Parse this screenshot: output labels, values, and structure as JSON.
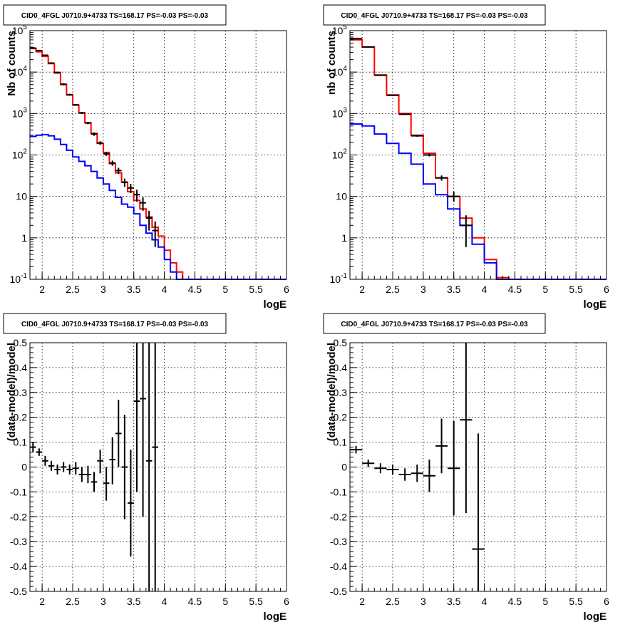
{
  "chart_data": [
    {
      "type": "line",
      "title": "CID0_4FGL J0710.9+4733 TS=168.17 PS=-0.03 PS=-0.03",
      "xlabel": "logE",
      "ylabel": "Nb of counts",
      "xlim": [
        1.8,
        6.0
      ],
      "ylim": [
        0.1,
        100000
      ],
      "yscale": "log",
      "grid": true,
      "xticks": [
        "2",
        "2.5",
        "3",
        "3.5",
        "4",
        "4.5",
        "5",
        "5.5",
        "6"
      ],
      "yticks": [
        "10^{-1}",
        "1",
        "10",
        "10^{2}",
        "10^{3}",
        "10^{4}",
        "10^{5}"
      ],
      "edges": [
        1.8,
        1.9,
        2.0,
        2.1,
        2.2,
        2.3,
        2.4,
        2.5,
        2.6,
        2.7,
        2.8,
        2.9,
        3.0,
        3.1,
        3.2,
        3.3,
        3.4,
        3.5,
        3.6,
        3.7,
        3.8,
        3.9,
        4.0,
        4.1,
        4.2,
        4.3,
        4.4,
        4.5,
        4.6,
        4.7,
        4.8,
        4.9,
        5.0,
        5.1,
        5.2,
        5.3,
        5.4,
        5.5,
        5.6,
        5.7,
        5.8,
        5.9,
        6.0
      ],
      "series": [
        {
          "role": "model-total",
          "color": "#ff0000",
          "values": [
            37000,
            31000,
            24000,
            16000,
            9500,
            5000,
            2800,
            1600,
            1050,
            600,
            330,
            190,
            115,
            62,
            37,
            22,
            13,
            8,
            5,
            3.2,
            1.8,
            1.1,
            0.5,
            0.25,
            0.15,
            0.1,
            0.1,
            0.1,
            0.1,
            0.1,
            0.1,
            0.1,
            0.1,
            0.1,
            0.1,
            0.1,
            0.1,
            0.1,
            0.1,
            0.1,
            0.1,
            0.1
          ]
        },
        {
          "role": "model-component",
          "color": "#0000ff",
          "values": [
            280,
            300,
            310,
            290,
            240,
            180,
            130,
            90,
            70,
            55,
            40,
            28,
            20,
            14,
            9.5,
            6.5,
            5.5,
            3.8,
            2,
            1.3,
            0.9,
            0.6,
            0.3,
            0.15,
            0.1,
            0.1,
            0.1,
            0.1,
            0.1,
            0.1,
            0.1,
            0.1,
            0.1,
            0.1,
            0.1,
            0.1,
            0.1,
            0.1,
            0.1,
            0.1,
            0.1,
            0.1
          ]
        }
      ],
      "points": [
        {
          "x": 1.85,
          "xerr": 0.05,
          "y": 38000,
          "ylo": 36000,
          "yhi": 40000
        },
        {
          "x": 1.95,
          "xerr": 0.05,
          "y": 33000,
          "ylo": 31500,
          "yhi": 34500
        },
        {
          "x": 2.05,
          "xerr": 0.05,
          "y": 25500,
          "ylo": 24500,
          "yhi": 26500
        },
        {
          "x": 2.15,
          "xerr": 0.05,
          "y": 16500,
          "ylo": 15800,
          "yhi": 17200
        },
        {
          "x": 2.25,
          "xerr": 0.05,
          "y": 9800,
          "ylo": 9400,
          "yhi": 10200
        },
        {
          "x": 2.35,
          "xerr": 0.05,
          "y": 5100,
          "ylo": 4800,
          "yhi": 5400
        },
        {
          "x": 2.45,
          "xerr": 0.05,
          "y": 2850,
          "ylo": 2700,
          "yhi": 3000
        },
        {
          "x": 2.55,
          "xerr": 0.05,
          "y": 1620,
          "ylo": 1540,
          "yhi": 1700
        },
        {
          "x": 2.65,
          "xerr": 0.05,
          "y": 1030,
          "ylo": 970,
          "yhi": 1090
        },
        {
          "x": 2.75,
          "xerr": 0.05,
          "y": 590,
          "ylo": 550,
          "yhi": 630
        },
        {
          "x": 2.85,
          "xerr": 0.05,
          "y": 320,
          "ylo": 290,
          "yhi": 350
        },
        {
          "x": 2.95,
          "xerr": 0.05,
          "y": 195,
          "ylo": 175,
          "yhi": 215
        },
        {
          "x": 3.05,
          "xerr": 0.05,
          "y": 107,
          "ylo": 95,
          "yhi": 120
        },
        {
          "x": 3.15,
          "xerr": 0.05,
          "y": 64,
          "ylo": 55,
          "yhi": 73
        },
        {
          "x": 3.25,
          "xerr": 0.05,
          "y": 42,
          "ylo": 35,
          "yhi": 49
        },
        {
          "x": 3.35,
          "xerr": 0.05,
          "y": 22,
          "ylo": 17,
          "yhi": 27
        },
        {
          "x": 3.45,
          "xerr": 0.05,
          "y": 16,
          "ylo": 12,
          "yhi": 20
        },
        {
          "x": 3.55,
          "xerr": 0.05,
          "y": 11,
          "ylo": 7.5,
          "yhi": 14.5
        },
        {
          "x": 3.65,
          "xerr": 0.05,
          "y": 7,
          "ylo": 4.5,
          "yhi": 9.5
        },
        {
          "x": 3.75,
          "xerr": 0.05,
          "y": 3,
          "ylo": 1.5,
          "yhi": 4.5
        },
        {
          "x": 3.85,
          "xerr": 0.05,
          "y": 1.5,
          "ylo": 0.6,
          "yhi": 2.5
        }
      ]
    },
    {
      "type": "line",
      "title": "CID0_4FGL J0710.9+4733 TS=168.17 PS=-0.03 PS=-0.03",
      "xlabel": "logE",
      "ylabel": "nb of counts",
      "xlim": [
        1.8,
        6.0
      ],
      "ylim": [
        0.1,
        100000
      ],
      "yscale": "log",
      "grid": true,
      "xticks": [
        "2",
        "2.5",
        "3",
        "3.5",
        "4",
        "4.5",
        "5",
        "5.5",
        "6"
      ],
      "yticks": [
        "10^{-1}",
        "1",
        "10",
        "10^{2}",
        "10^{3}",
        "10^{4}",
        "10^{5}"
      ],
      "edges": [
        1.8,
        2.0,
        2.2,
        2.4,
        2.6,
        2.8,
        3.0,
        3.2,
        3.4,
        3.6,
        3.8,
        4.0,
        4.2,
        4.4,
        4.6,
        4.8,
        5.0,
        5.2,
        5.4,
        5.6,
        5.8,
        6.0
      ],
      "series": [
        {
          "role": "model-total",
          "color": "#ff0000",
          "values": [
            60000,
            40000,
            8500,
            2800,
            1000,
            300,
            110,
            28,
            10,
            3,
            1,
            0.3,
            0.11,
            0.1,
            0.1,
            0.1,
            0.1,
            0.1,
            0.1,
            0.1,
            0.1
          ]
        },
        {
          "role": "model-component",
          "color": "#0000ff",
          "values": [
            560,
            500,
            320,
            190,
            110,
            60,
            20,
            11,
            5,
            2,
            0.7,
            0.25,
            0.1,
            0.1,
            0.1,
            0.1,
            0.1,
            0.1,
            0.1,
            0.1,
            0.1
          ]
        }
      ],
      "points": [
        {
          "x": 1.9,
          "xerr": 0.1,
          "y": 64000,
          "ylo": 62000,
          "yhi": 66000
        },
        {
          "x": 2.1,
          "xerr": 0.1,
          "y": 40500,
          "ylo": 39500,
          "yhi": 41500
        },
        {
          "x": 2.3,
          "xerr": 0.1,
          "y": 8400,
          "ylo": 8200,
          "yhi": 8600
        },
        {
          "x": 2.5,
          "xerr": 0.1,
          "y": 2750,
          "ylo": 2650,
          "yhi": 2850
        },
        {
          "x": 2.7,
          "xerr": 0.1,
          "y": 960,
          "ylo": 920,
          "yhi": 1000
        },
        {
          "x": 2.9,
          "xerr": 0.1,
          "y": 290,
          "ylo": 275,
          "yhi": 305
        },
        {
          "x": 3.1,
          "xerr": 0.1,
          "y": 100,
          "ylo": 92,
          "yhi": 108
        },
        {
          "x": 3.3,
          "xerr": 0.1,
          "y": 28,
          "ylo": 24,
          "yhi": 32
        },
        {
          "x": 3.5,
          "xerr": 0.1,
          "y": 10,
          "ylo": 7.5,
          "yhi": 13
        },
        {
          "x": 3.7,
          "xerr": 0.1,
          "y": 2,
          "ylo": 0.6,
          "yhi": 3.5
        }
      ]
    },
    {
      "type": "scatter",
      "title": "CID0_4FGL J0710.9+4733 TS=168.17 PS=-0.03 PS=-0.03",
      "xlabel": "logE",
      "ylabel": "(data-model)/model",
      "xlim": [
        1.8,
        6.0
      ],
      "ylim": [
        -0.5,
        0.5
      ],
      "grid": true,
      "xticks": [
        "2",
        "2.5",
        "3",
        "3.5",
        "4",
        "4.5",
        "5",
        "5.5",
        "6"
      ],
      "yticks": [
        "-0.5",
        "-0.4",
        "-0.3",
        "-0.2",
        "-0.1",
        "0",
        "0.1",
        "0.2",
        "0.3",
        "0.4",
        "0.5"
      ],
      "points": [
        {
          "x": 1.85,
          "xerr": 0.05,
          "y": 0.08,
          "ylo": 0.06,
          "yhi": 0.1
        },
        {
          "x": 1.95,
          "xerr": 0.05,
          "y": 0.06,
          "ylo": 0.045,
          "yhi": 0.075
        },
        {
          "x": 2.05,
          "xerr": 0.05,
          "y": 0.025,
          "ylo": 0.005,
          "yhi": 0.045
        },
        {
          "x": 2.15,
          "xerr": 0.05,
          "y": 0.005,
          "ylo": -0.015,
          "yhi": 0.025
        },
        {
          "x": 2.25,
          "xerr": 0.05,
          "y": -0.01,
          "ylo": -0.03,
          "yhi": 0.01
        },
        {
          "x": 2.35,
          "xerr": 0.05,
          "y": 0.0,
          "ylo": -0.02,
          "yhi": 0.02
        },
        {
          "x": 2.45,
          "xerr": 0.05,
          "y": -0.01,
          "ylo": -0.03,
          "yhi": 0.01
        },
        {
          "x": 2.55,
          "xerr": 0.05,
          "y": -0.005,
          "ylo": -0.03,
          "yhi": 0.02
        },
        {
          "x": 2.65,
          "xerr": 0.05,
          "y": -0.03,
          "ylo": -0.06,
          "yhi": 0.0
        },
        {
          "x": 2.75,
          "xerr": 0.05,
          "y": -0.03,
          "ylo": -0.065,
          "yhi": 0.005
        },
        {
          "x": 2.85,
          "xerr": 0.05,
          "y": -0.06,
          "ylo": -0.1,
          "yhi": -0.02
        },
        {
          "x": 2.95,
          "xerr": 0.05,
          "y": 0.025,
          "ylo": -0.025,
          "yhi": 0.07
        },
        {
          "x": 3.05,
          "xerr": 0.05,
          "y": -0.065,
          "ylo": -0.135,
          "yhi": 0.0
        },
        {
          "x": 3.15,
          "xerr": 0.05,
          "y": 0.03,
          "ylo": -0.07,
          "yhi": 0.12
        },
        {
          "x": 3.25,
          "xerr": 0.05,
          "y": 0.135,
          "ylo": 0.0,
          "yhi": 0.27
        },
        {
          "x": 3.35,
          "xerr": 0.05,
          "y": 0.0,
          "ylo": -0.21,
          "yhi": 0.21
        },
        {
          "x": 3.45,
          "xerr": 0.05,
          "y": -0.145,
          "ylo": -0.36,
          "yhi": 0.07
        },
        {
          "x": 3.55,
          "xerr": 0.05,
          "y": 0.265,
          "ylo": -0.1,
          "yhi": 0.5
        },
        {
          "x": 3.65,
          "xerr": 0.05,
          "y": 0.275,
          "ylo": -0.2,
          "yhi": 0.5
        },
        {
          "x": 3.75,
          "xerr": 0.05,
          "y": 0.025,
          "ylo": -0.5,
          "yhi": 0.5
        },
        {
          "x": 3.85,
          "xerr": 0.05,
          "y": 0.08,
          "ylo": -0.5,
          "yhi": 0.5
        }
      ]
    },
    {
      "type": "scatter",
      "title": "CID0_4FGL J0710.9+4733 TS=168.17 PS=-0.03 PS=-0.03",
      "xlabel": "logE",
      "ylabel": "(data-model)/model",
      "xlim": [
        1.8,
        6.0
      ],
      "ylim": [
        -0.5,
        0.5
      ],
      "grid": true,
      "xticks": [
        "2",
        "2.5",
        "3",
        "3.5",
        "4",
        "4.5",
        "5",
        "5.5",
        "6"
      ],
      "yticks": [
        "-0.5",
        "-0.4",
        "-0.3",
        "-0.2",
        "-0.1",
        "0",
        "0.1",
        "0.2",
        "0.3",
        "0.4",
        "0.5"
      ],
      "points": [
        {
          "x": 1.9,
          "xerr": 0.1,
          "y": 0.07,
          "ylo": 0.055,
          "yhi": 0.085
        },
        {
          "x": 2.1,
          "xerr": 0.1,
          "y": 0.015,
          "ylo": 0.0,
          "yhi": 0.03
        },
        {
          "x": 2.3,
          "xerr": 0.1,
          "y": -0.005,
          "ylo": -0.025,
          "yhi": 0.015
        },
        {
          "x": 2.5,
          "xerr": 0.1,
          "y": -0.01,
          "ylo": -0.03,
          "yhi": 0.01
        },
        {
          "x": 2.7,
          "xerr": 0.1,
          "y": -0.03,
          "ylo": -0.055,
          "yhi": -0.005
        },
        {
          "x": 2.9,
          "xerr": 0.1,
          "y": -0.025,
          "ylo": -0.06,
          "yhi": 0.01
        },
        {
          "x": 3.1,
          "xerr": 0.1,
          "y": -0.035,
          "ylo": -0.1,
          "yhi": 0.03
        },
        {
          "x": 3.3,
          "xerr": 0.1,
          "y": 0.085,
          "ylo": -0.025,
          "yhi": 0.195
        },
        {
          "x": 3.5,
          "xerr": 0.1,
          "y": -0.005,
          "ylo": -0.195,
          "yhi": 0.185
        },
        {
          "x": 3.7,
          "xerr": 0.1,
          "y": 0.19,
          "ylo": -0.185,
          "yhi": 0.5
        },
        {
          "x": 3.9,
          "xerr": 0.1,
          "y": -0.33,
          "ylo": -0.5,
          "yhi": 0.135
        }
      ]
    }
  ]
}
